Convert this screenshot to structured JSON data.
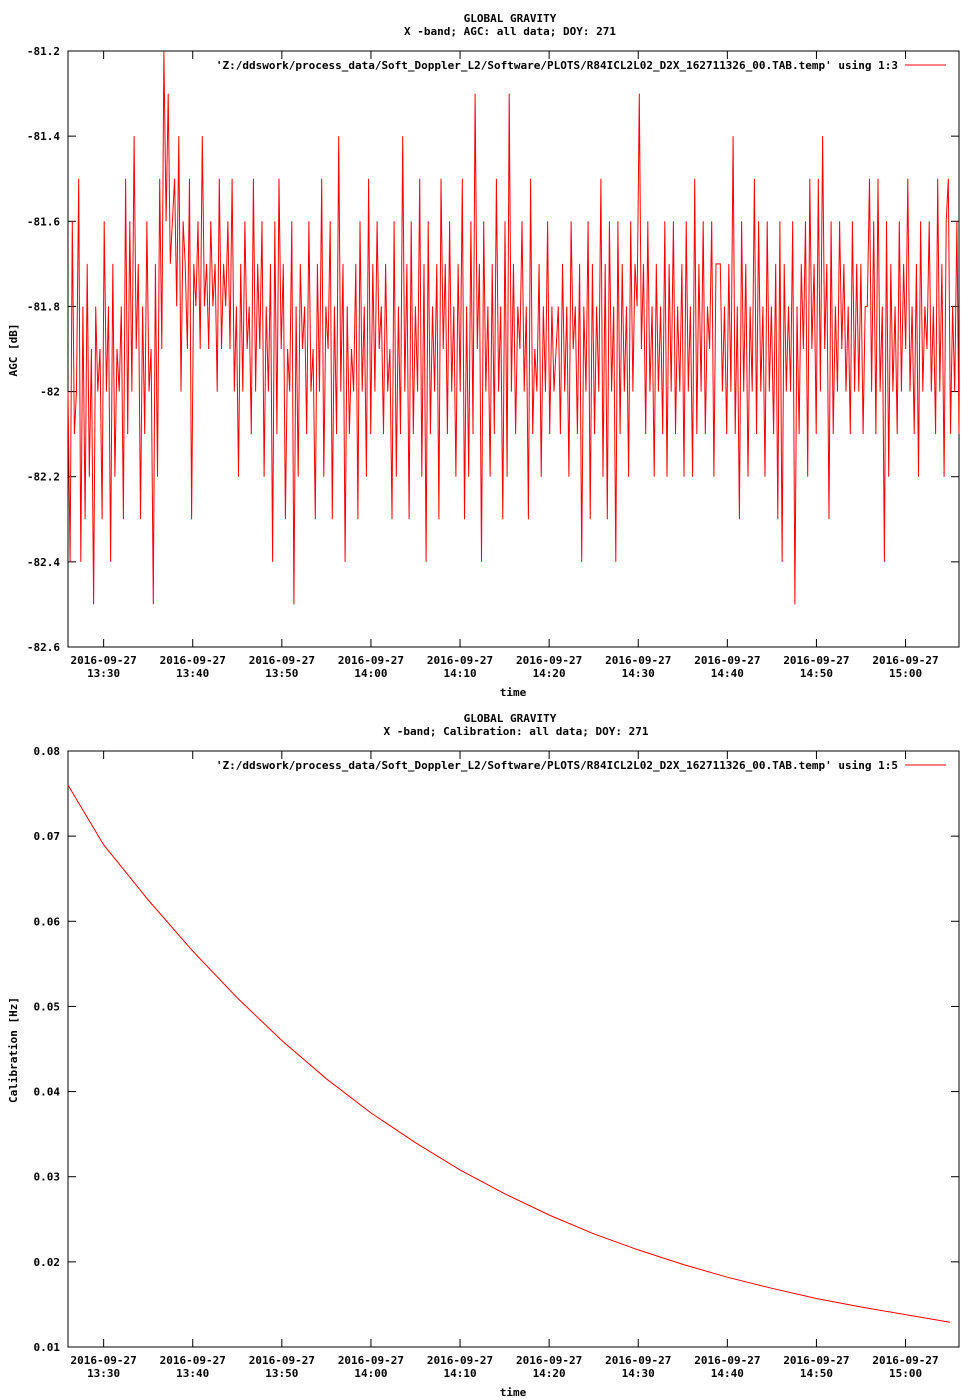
{
  "chart_data": [
    {
      "type": "line",
      "title": "GLOBAL GRAVITY",
      "subtitle": "X -band; AGC: all data; DOY: 271",
      "xlabel": "time",
      "ylabel": "AGC [dB]",
      "ylim": [
        -82.6,
        -81.2
      ],
      "yticks": [
        -82.6,
        -82.4,
        -82.2,
        -82,
        -81.8,
        -81.6,
        -81.4,
        -81.2
      ],
      "ytick_labels": [
        "-82.6",
        "-82.4",
        "-82.2",
        "-82",
        "-81.8",
        "-81.6",
        "-81.4",
        "-81.2"
      ],
      "xlim": [
        "2016-09-27 13:26",
        "2016-09-27 15:06"
      ],
      "xticks": [
        "2016-09-27 13:30",
        "2016-09-27 13:40",
        "2016-09-27 13:50",
        "2016-09-27 14:00",
        "2016-09-27 14:10",
        "2016-09-27 14:20",
        "2016-09-27 14:30",
        "2016-09-27 14:40",
        "2016-09-27 14:50",
        "2016-09-27 15:00"
      ],
      "xtick_date": "2016-09-27",
      "xtick_times": [
        "13:30",
        "13:40",
        "13:50",
        "14:00",
        "14:10",
        "14:20",
        "14:30",
        "14:40",
        "14:50",
        "15:00"
      ],
      "grid": false,
      "legend_position": "top-right",
      "series": [
        {
          "name": "'Z:/ddswork/process_data/Soft_Doppler_L2/Software/PLOTS/R84ICL2L02_D2X_162711326_00.TAB.temp' using 1:3",
          "color": "#ff0000",
          "x_start": "2016-09-27 13:26",
          "x_end": "2016-09-27 15:06",
          "values": [
            -82.0,
            -82.4,
            -81.6,
            -82.1,
            -82.0,
            -81.5,
            -82.4,
            -81.8,
            -82.3,
            -81.7,
            -82.2,
            -81.9,
            -82.5,
            -81.8,
            -82.0,
            -81.9,
            -82.3,
            -81.6,
            -82.0,
            -81.8,
            -82.4,
            -81.7,
            -82.2,
            -81.9,
            -82.0,
            -81.8,
            -82.3,
            -81.5,
            -82.1,
            -81.6,
            -82.0,
            -81.4,
            -81.9,
            -81.7,
            -82.3,
            -81.8,
            -82.1,
            -81.6,
            -82.0,
            -81.9,
            -82.5,
            -81.7,
            -82.2,
            -81.5,
            -81.9,
            -81.2,
            -81.6,
            -81.3,
            -81.7,
            -81.6,
            -81.5,
            -81.8,
            -81.4,
            -82.0,
            -81.6,
            -81.7,
            -81.9,
            -81.5,
            -82.3,
            -81.7,
            -81.8,
            -81.6,
            -81.9,
            -81.4,
            -81.8,
            -81.7,
            -81.9,
            -81.6,
            -81.8,
            -81.7,
            -82.0,
            -81.5,
            -81.9,
            -81.7,
            -81.8,
            -81.6,
            -81.9,
            -81.5,
            -82.0,
            -81.8,
            -82.2,
            -81.7,
            -82.0,
            -81.6,
            -81.9,
            -81.8,
            -82.1,
            -81.5,
            -82.0,
            -81.7,
            -81.9,
            -81.6,
            -82.2,
            -81.8,
            -82.0,
            -81.7,
            -82.4,
            -81.6,
            -82.1,
            -81.5,
            -81.9,
            -81.7,
            -82.3,
            -81.9,
            -82.0,
            -81.6,
            -82.5,
            -81.8,
            -82.2,
            -81.7,
            -81.9,
            -81.8,
            -82.1,
            -81.6,
            -82.0,
            -81.9,
            -82.3,
            -81.7,
            -82.0,
            -81.5,
            -82.2,
            -81.8,
            -81.9,
            -81.6,
            -82.3,
            -81.8,
            -82.1,
            -81.4,
            -82.0,
            -81.7,
            -82.4,
            -81.8,
            -82.1,
            -81.9,
            -82.0,
            -81.7,
            -82.3,
            -81.6,
            -82.0,
            -81.8,
            -82.2,
            -81.5,
            -82.1,
            -81.7,
            -82.0,
            -81.6,
            -81.9,
            -81.8,
            -82.1,
            -81.7,
            -82.0,
            -81.9,
            -82.3,
            -81.6,
            -82.2,
            -81.8,
            -82.1,
            -81.4,
            -82.0,
            -81.7,
            -82.3,
            -81.6,
            -82.1,
            -81.8,
            -82.0,
            -81.5,
            -82.2,
            -81.7,
            -82.4,
            -81.6,
            -82.1,
            -81.8,
            -82.0,
            -81.7,
            -82.3,
            -81.5,
            -81.9,
            -81.7,
            -82.1,
            -81.6,
            -82.0,
            -81.8,
            -82.2,
            -81.7,
            -82.0,
            -81.5,
            -82.3,
            -81.8,
            -82.2,
            -81.6,
            -82.1,
            -81.3,
            -81.9,
            -81.7,
            -82.4,
            -81.6,
            -82.0,
            -81.8,
            -82.2,
            -81.7,
            -82.1,
            -81.5,
            -82.0,
            -81.8,
            -82.3,
            -81.6,
            -82.2,
            -81.3,
            -82.0,
            -81.7,
            -82.1,
            -81.8,
            -81.9,
            -81.6,
            -82.0,
            -81.8,
            -82.3,
            -81.5,
            -82.1,
            -81.9,
            -82.0,
            -81.7,
            -82.2,
            -81.8,
            -82.0,
            -81.6,
            -82.1,
            -81.8,
            -82.0,
            -81.9,
            -81.8,
            -82.1,
            -81.7,
            -82.0,
            -81.8,
            -82.2,
            -81.6,
            -81.9,
            -81.8,
            -82.1,
            -81.7,
            -82.4,
            -81.8,
            -82.0,
            -81.6,
            -82.3,
            -81.7,
            -82.1,
            -81.8,
            -82.0,
            -81.5,
            -82.2,
            -81.7,
            -82.3,
            -81.6,
            -82.0,
            -81.8,
            -82.4,
            -81.6,
            -82.1,
            -81.7,
            -82.0,
            -81.8,
            -82.2,
            -81.6,
            -82.0,
            -81.7,
            -81.8,
            -81.3,
            -81.9,
            -81.7,
            -82.1,
            -81.6,
            -82.0,
            -81.8,
            -82.2,
            -81.7,
            -82.0,
            -81.8,
            -82.1,
            -81.6,
            -82.2,
            -81.7,
            -82.0,
            -81.6,
            -82.1,
            -81.8,
            -82.0,
            -81.7,
            -82.2,
            -81.6,
            -82.0,
            -81.8,
            -82.2,
            -81.5,
            -82.1,
            -81.7,
            -82.0,
            -81.6,
            -82.1,
            -81.8,
            -81.9,
            -81.6,
            -82.2,
            -81.7,
            -81.7,
            -81.7,
            -82.0,
            -81.8,
            -82.1,
            -81.7,
            -82.0,
            -81.4,
            -82.1,
            -81.8,
            -82.3,
            -81.6,
            -82.0,
            -81.7,
            -82.2,
            -81.8,
            -82.0,
            -81.5,
            -82.1,
            -81.6,
            -82.0,
            -81.8,
            -82.2,
            -81.6,
            -82.0,
            -81.8,
            -82.1,
            -81.7,
            -82.3,
            -81.6,
            -82.4,
            -81.7,
            -82.0,
            -81.8,
            -82.0,
            -81.6,
            -82.5,
            -81.8,
            -82.1,
            -81.7,
            -81.9,
            -81.6,
            -82.2,
            -81.5,
            -81.9,
            -81.7,
            -82.1,
            -81.5,
            -82.0,
            -81.4,
            -81.9,
            -81.7,
            -82.3,
            -81.6,
            -82.1,
            -81.8,
            -82.0,
            -81.6,
            -81.9,
            -81.7,
            -82.0,
            -81.8,
            -82.1,
            -81.6,
            -82.0,
            -81.7,
            -82.0,
            -81.7,
            -82.1,
            -81.8,
            -81.8,
            -81.5,
            -82.0,
            -81.6,
            -82.1,
            -81.5,
            -82.0,
            -81.8,
            -82.4,
            -81.6,
            -82.2,
            -81.7,
            -82.0,
            -81.8,
            -82.1,
            -81.6,
            -82.0,
            -81.7,
            -81.9,
            -81.5,
            -82.0,
            -81.8,
            -82.1,
            -81.7,
            -82.2,
            -81.6,
            -82.0,
            -81.8,
            -81.9,
            -81.6,
            -82.0,
            -81.8,
            -82.1,
            -81.5,
            -82.0,
            -81.7,
            -82.2,
            -81.6,
            -81.5,
            -82.1,
            -81.8,
            -82.0,
            -81.6,
            -82.1
          ]
        }
      ]
    },
    {
      "type": "line",
      "title": "GLOBAL GRAVITY",
      "subtitle": "X -band; Calibration: all data; DOY: 271",
      "xlabel": "time",
      "ylabel": "Calibration [Hz]",
      "ylim": [
        0.01,
        0.08
      ],
      "yticks": [
        0.01,
        0.02,
        0.03,
        0.04,
        0.05,
        0.06,
        0.07,
        0.08
      ],
      "ytick_labels": [
        "0.01",
        "0.02",
        "0.03",
        "0.04",
        "0.05",
        "0.06",
        "0.07",
        "0.08"
      ],
      "xlim": [
        "2016-09-27 13:26",
        "2016-09-27 15:06"
      ],
      "xticks": [
        "2016-09-27 13:30",
        "2016-09-27 13:40",
        "2016-09-27 13:50",
        "2016-09-27 14:00",
        "2016-09-27 14:10",
        "2016-09-27 14:20",
        "2016-09-27 14:30",
        "2016-09-27 14:40",
        "2016-09-27 14:50",
        "2016-09-27 15:00"
      ],
      "xtick_date": "2016-09-27",
      "xtick_times": [
        "13:30",
        "13:40",
        "13:50",
        "14:00",
        "14:10",
        "14:20",
        "14:30",
        "14:40",
        "14:50",
        "15:00"
      ],
      "grid": false,
      "legend_position": "top-right",
      "series": [
        {
          "name": "'Z:/ddswork/process_data/Soft_Doppler_L2/Software/PLOTS/R84ICL2L02_D2X_162711326_00.TAB.temp' using 1:5",
          "color": "#ff0000",
          "x": [
            "2016-09-27 13:26",
            "2016-09-27 13:30",
            "2016-09-27 13:35",
            "2016-09-27 13:40",
            "2016-09-27 13:45",
            "2016-09-27 13:50",
            "2016-09-27 13:55",
            "2016-09-27 14:00",
            "2016-09-27 14:05",
            "2016-09-27 14:10",
            "2016-09-27 14:15",
            "2016-09-27 14:20",
            "2016-09-27 14:25",
            "2016-09-27 14:30",
            "2016-09-27 14:35",
            "2016-09-27 14:40",
            "2016-09-27 14:45",
            "2016-09-27 14:50",
            "2016-09-27 14:55",
            "2016-09-27 15:00",
            "2016-09-27 15:05"
          ],
          "values": [
            0.076,
            0.069,
            0.0625,
            0.0565,
            0.051,
            0.046,
            0.0415,
            0.0375,
            0.034,
            0.0308,
            0.028,
            0.0255,
            0.0233,
            0.0214,
            0.0197,
            0.0182,
            0.0169,
            0.0157,
            0.0147,
            0.0138,
            0.0129
          ]
        }
      ]
    }
  ]
}
